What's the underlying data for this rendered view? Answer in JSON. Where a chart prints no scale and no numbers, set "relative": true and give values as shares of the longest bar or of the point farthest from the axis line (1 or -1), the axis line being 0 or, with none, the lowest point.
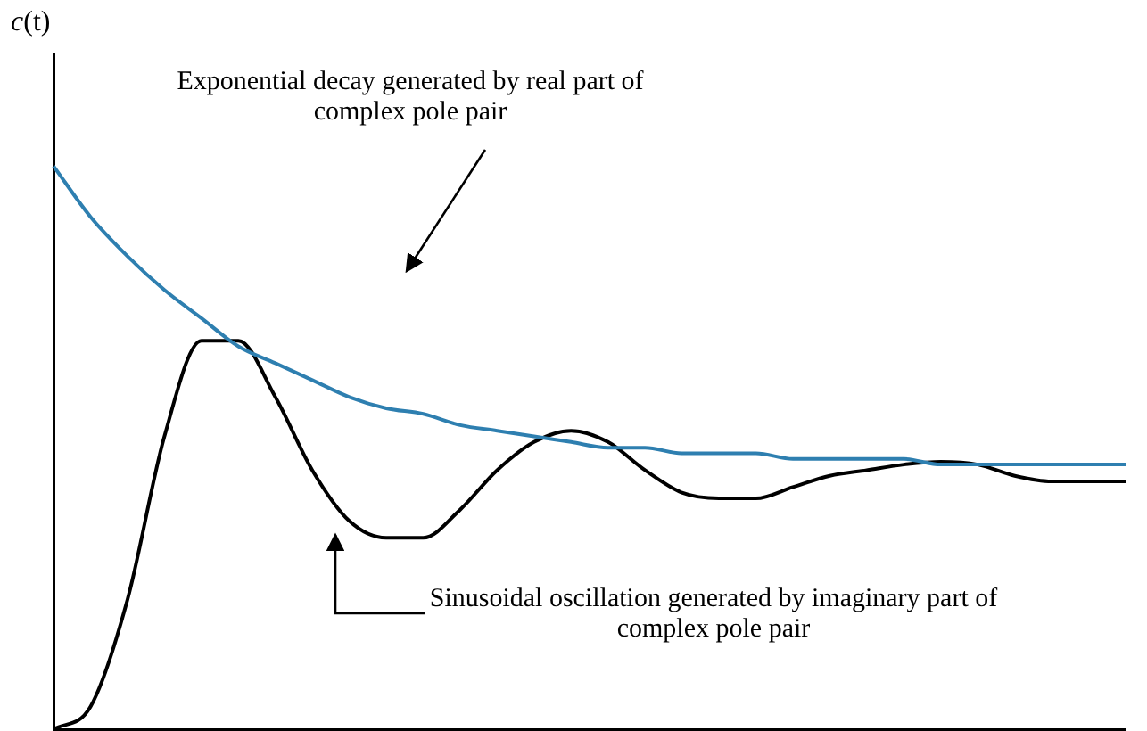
{
  "chart_data": {
    "type": "line",
    "relative": true,
    "ylabel": "c(t)",
    "marker": "none",
    "categories": [
      null,
      null,
      null,
      null,
      null,
      null,
      null,
      null,
      null,
      null,
      null,
      null,
      null,
      null,
      null,
      null,
      null,
      null,
      null,
      null,
      null,
      null,
      null,
      null,
      null,
      null,
      null,
      null,
      null,
      null
    ],
    "series": [
      {
        "color": "#2e7fb0",
        "values": [
          1,
          0.91,
          0.84,
          0.78,
          0.73,
          0.68,
          0.65,
          0.62,
          0.59,
          0.57,
          0.56,
          0.54,
          0.53,
          0.52,
          0.51,
          0.5,
          0.5,
          0.49,
          0.49,
          0.49,
          0.48,
          0.48,
          0.48,
          0.48,
          0.47,
          0.47,
          0.47,
          0.47,
          0.47,
          0.47
        ]
      },
      {
        "color": "#000000",
        "values": [
          0,
          0.04,
          0.23,
          0.52,
          0.69,
          0.69,
          0.59,
          0.46,
          0.37,
          0.34,
          0.34,
          0.39,
          0.46,
          0.51,
          0.53,
          0.51,
          0.46,
          0.42,
          0.41,
          0.41,
          0.43,
          0.45,
          0.46,
          0.47,
          0.475,
          0.47,
          0.45,
          0.44,
          0.44,
          0.44
        ]
      }
    ],
    "annotations": [
      "Exponential decay generated by real part of complex pole pair",
      "Sinusoidal oscillation generated by imaginary part of complex pole pair"
    ]
  }
}
